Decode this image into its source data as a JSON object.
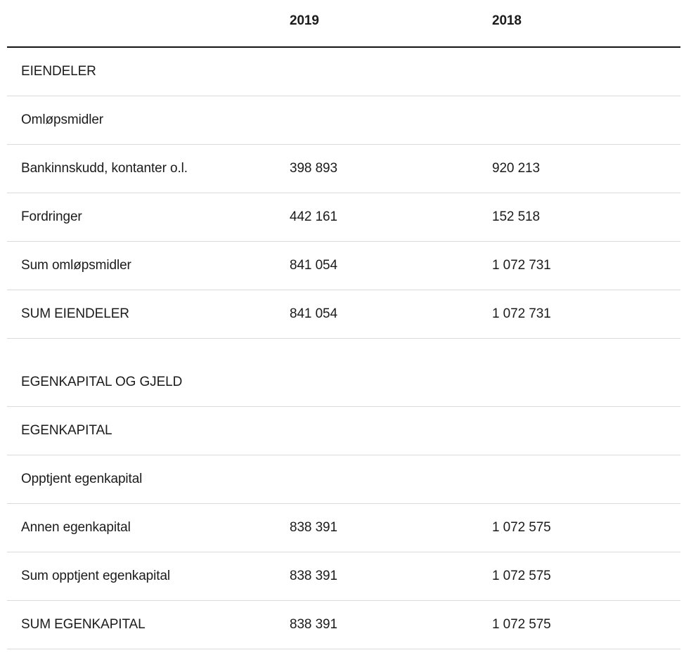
{
  "table": {
    "title": "balance-sheet",
    "columns": {
      "label": "",
      "year_2019": "2019",
      "year_2018": "2018"
    },
    "rows": [
      {
        "label": "EIENDELER",
        "v2019": "",
        "v2018": ""
      },
      {
        "label": "Omløpsmidler",
        "v2019": "",
        "v2018": ""
      },
      {
        "label": "Bankinnskudd, kontanter o.l.",
        "v2019": "398 893",
        "v2018": "920 213"
      },
      {
        "label": "Fordringer",
        "v2019": "442 161",
        "v2018": "152 518"
      },
      {
        "label": "Sum omløpsmidler",
        "v2019": "841 054",
        "v2018": "1 072 731"
      },
      {
        "label": "SUM EIENDELER",
        "v2019": "841 054",
        "v2018": "1 072 731"
      },
      {
        "label": "EGENKAPITAL OG GJELD",
        "v2019": "",
        "v2018": ""
      },
      {
        "label": "EGENKAPITAL",
        "v2019": "",
        "v2018": ""
      },
      {
        "label": "Opptjent egenkapital",
        "v2019": "",
        "v2018": ""
      },
      {
        "label": "Annen egenkapital",
        "v2019": "838 391",
        "v2018": "1 072 575"
      },
      {
        "label": "Sum opptjent egenkapital",
        "v2019": "838 391",
        "v2018": "1 072 575"
      },
      {
        "label": "SUM EGENKAPITAL",
        "v2019": "838 391",
        "v2018": "1 072 575"
      }
    ],
    "colors": {
      "text": "#1b1b1b",
      "divider": "#dadada",
      "header_rule": "#141414",
      "background": "#ffffff"
    }
  }
}
